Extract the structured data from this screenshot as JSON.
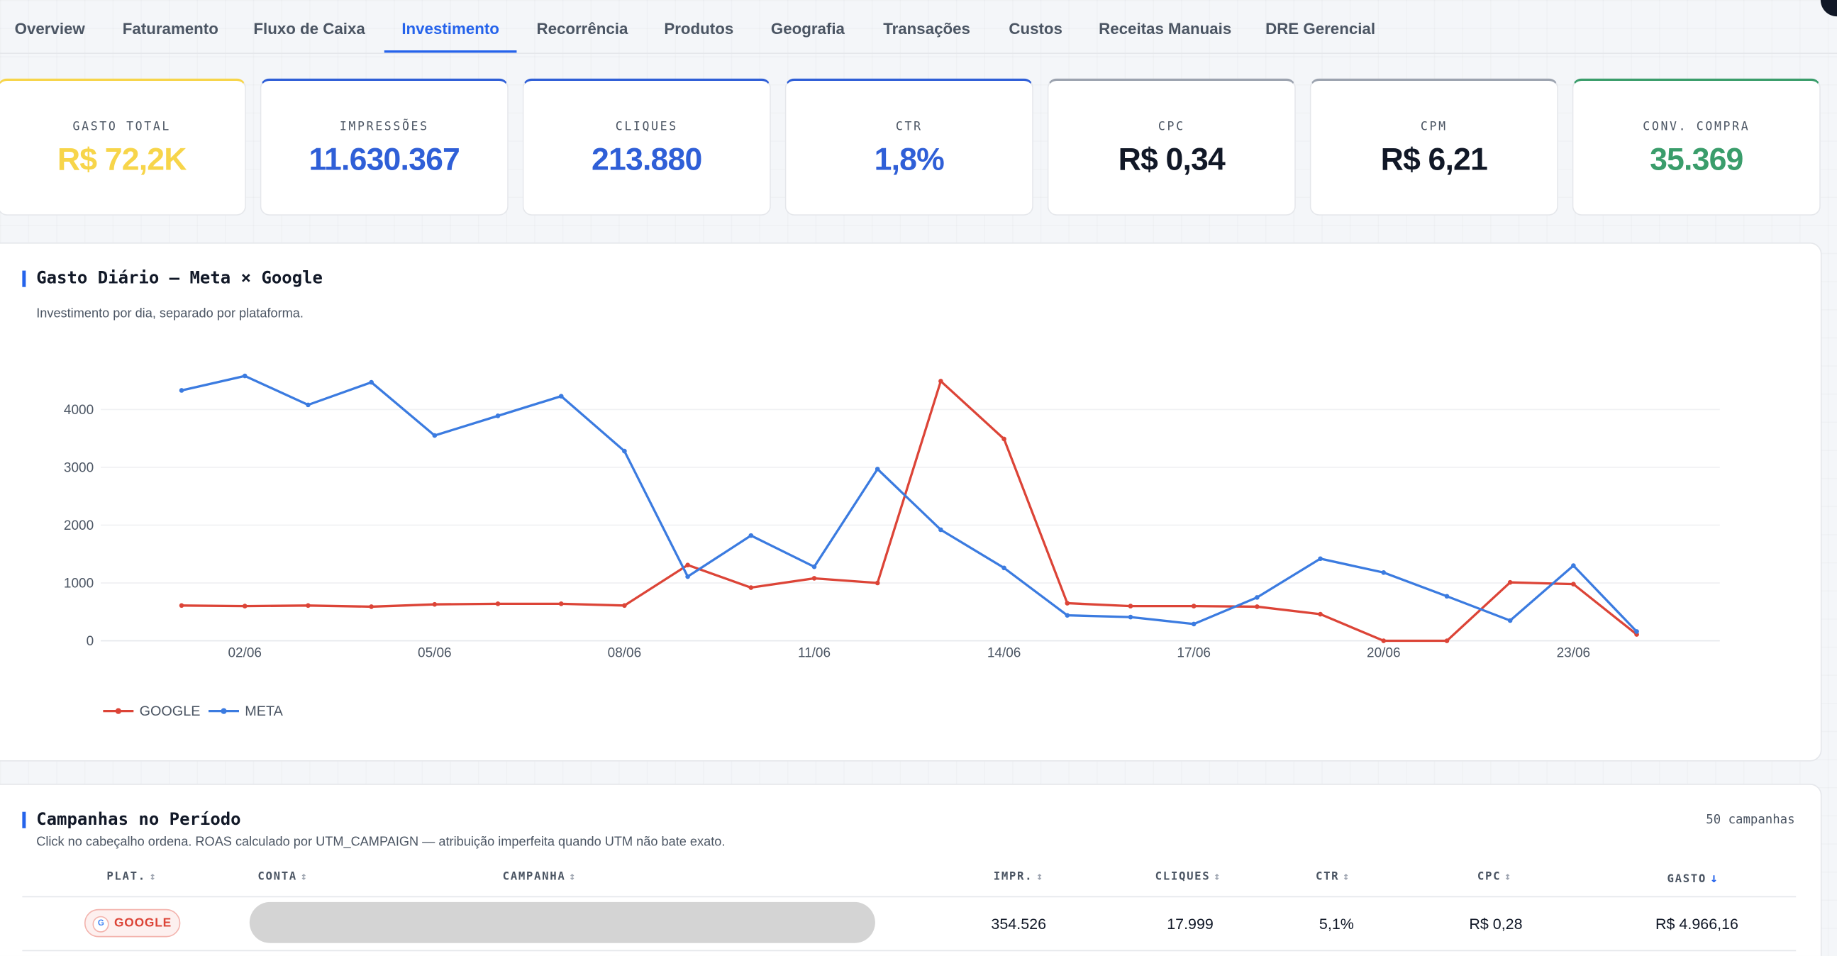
{
  "tabs": [
    {
      "label": "Overview",
      "active": false
    },
    {
      "label": "Faturamento",
      "active": false
    },
    {
      "label": "Fluxo de Caixa",
      "active": false
    },
    {
      "label": "Investimento",
      "active": true
    },
    {
      "label": "Recorrência",
      "active": false
    },
    {
      "label": "Produtos",
      "active": false
    },
    {
      "label": "Geografia",
      "active": false
    },
    {
      "label": "Transações",
      "active": false
    },
    {
      "label": "Custos",
      "active": false
    },
    {
      "label": "Receitas Manuais",
      "active": false
    },
    {
      "label": "DRE Gerencial",
      "active": false
    }
  ],
  "kpis": [
    {
      "label": "GASTO TOTAL",
      "value": "R$ 72,2K",
      "color": "#f7d54a",
      "accent": "#f7d54a"
    },
    {
      "label": "IMPRESSÕES",
      "value": "11.630.367",
      "color": "#2f5fd7",
      "accent": "#2f5fd7"
    },
    {
      "label": "CLIQUES",
      "value": "213.880",
      "color": "#2f5fd7",
      "accent": "#2f5fd7"
    },
    {
      "label": "CTR",
      "value": "1,8%",
      "color": "#2f5fd7",
      "accent": "#2f5fd7"
    },
    {
      "label": "CPC",
      "value": "R$ 0,34",
      "color": "#111827",
      "accent": "#9ca3af"
    },
    {
      "label": "CPM",
      "value": "R$ 6,21",
      "color": "#111827",
      "accent": "#9ca3af"
    },
    {
      "label": "CONV. COMPRA",
      "value": "35.369",
      "color": "#3a9d6b",
      "accent": "#3a9d6b"
    }
  ],
  "daily_chart": {
    "title": "Gasto Diário — Meta × Google",
    "subtitle": "Investimento por dia, separado por plataforma."
  },
  "chart_data": {
    "type": "line",
    "title": "Gasto Diário — Meta × Google",
    "subtitle": "Investimento por dia, separado por plataforma.",
    "x": [
      "01/06",
      "02/06",
      "03/06",
      "04/06",
      "05/06",
      "06/06",
      "07/06",
      "08/06",
      "09/06",
      "10/06",
      "11/06",
      "12/06",
      "13/06",
      "14/06",
      "15/06",
      "16/06",
      "17/06",
      "18/06",
      "19/06",
      "20/06",
      "21/06",
      "22/06",
      "23/06",
      "24/06"
    ],
    "x_ticks": [
      "02/06",
      "05/06",
      "08/06",
      "11/06",
      "14/06",
      "17/06",
      "20/06",
      "23/06"
    ],
    "y_ticks": [
      0,
      1000,
      2000,
      3000,
      4000
    ],
    "ylim": [
      0,
      4700
    ],
    "grid": true,
    "legend_position": "bottom-left",
    "series": [
      {
        "name": "GOOGLE",
        "color": "#dc4437",
        "values": [
          610,
          600,
          610,
          590,
          630,
          640,
          640,
          610,
          1310,
          920,
          1080,
          1000,
          4490,
          3490,
          650,
          600,
          600,
          590,
          460,
          0,
          0,
          1010,
          980,
          110
        ]
      },
      {
        "name": "META",
        "color": "#3b7be0",
        "values": [
          4330,
          4580,
          4080,
          4470,
          3550,
          3890,
          4230,
          3280,
          1110,
          1820,
          1280,
          2970,
          1920,
          1260,
          440,
          410,
          290,
          750,
          1420,
          1180,
          770,
          350,
          1300,
          160
        ]
      }
    ]
  },
  "campaigns": {
    "title": "Campanhas no Período",
    "subtitle": "Click no cabeçalho ordena. ROAS calculado por UTM_CAMPAIGN — atribuição imperfeita quando UTM não bate exato.",
    "count": "50 campanhas",
    "columns": {
      "plat": "PLAT.",
      "conta": "CONTA",
      "campanha": "CAMPANHA",
      "impr": "IMPR.",
      "cliques": "CLIQUES",
      "ctr": "CTR",
      "cpc": "CPC",
      "gasto": "GASTO"
    },
    "sort_icon": "↕",
    "sort_active_icon": "↓",
    "rows": [
      {
        "plat": "GOOGLE",
        "plat_icon": "G",
        "impr": "354.526",
        "cliques": "17.999",
        "ctr": "5,1%",
        "cpc": "R$ 0,28",
        "gasto": "R$ 4.966,16"
      }
    ]
  }
}
